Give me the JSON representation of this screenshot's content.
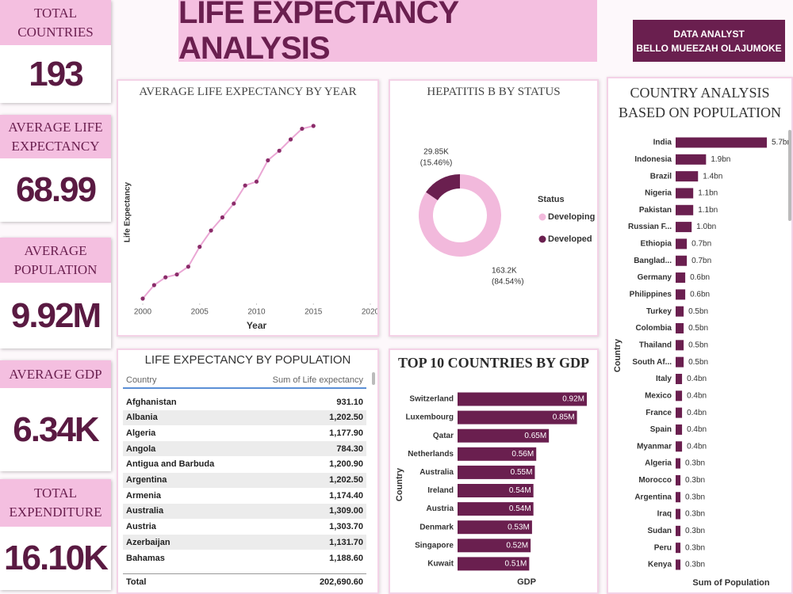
{
  "header": {
    "title": "LIFE EXPECTANCY ANALYSIS",
    "author_line1": "DATA ANALYST",
    "author_line2": "BELLO MUEEZAH OLAJUMOKE"
  },
  "kpis": [
    {
      "label": "TOTAL COUNTRIES",
      "value": "193"
    },
    {
      "label": "AVERAGE LIFE EXPECTANCY",
      "value": "68.99"
    },
    {
      "label": "AVERAGE POPULATION",
      "value": "9.92M"
    },
    {
      "label": "AVERAGE GDP",
      "value": "6.34K"
    },
    {
      "label": "TOTAL EXPENDITURE",
      "value": "16.10K"
    }
  ],
  "chart_data": [
    {
      "type": "line",
      "title": "AVERAGE LIFE EXPECTANCY BY YEAR",
      "xlabel": "Year",
      "ylabel": "Life Expectancy",
      "x": [
        2000,
        2001,
        2002,
        2003,
        2004,
        2005,
        2006,
        2007,
        2008,
        2009,
        2010,
        2011,
        2012,
        2013,
        2014,
        2015
      ],
      "values": [
        66.75,
        67.13,
        67.35,
        67.43,
        67.65,
        68.21,
        68.67,
        69.04,
        69.43,
        69.94,
        70.05,
        70.65,
        70.92,
        71.24,
        71.54,
        71.62
      ],
      "xlim": [
        2000,
        2020
      ],
      "xticks": [
        2000,
        2005,
        2010,
        2015,
        2020
      ],
      "color": "#eaa6d4",
      "marker_color": "#8b2c6a"
    },
    {
      "type": "donut",
      "title": "HEPATITIS B BY STATUS",
      "legend_title": "Status",
      "categories": [
        "Developing",
        "Developed"
      ],
      "values": [
        163200,
        29850
      ],
      "value_labels": [
        "163.2K",
        "29.85K"
      ],
      "percent_labels": [
        "(84.54%)",
        "(15.46%)"
      ],
      "colors": [
        "#f2b9dc",
        "#6a1f4f"
      ]
    },
    {
      "type": "hbar",
      "title": "TOP 10 COUNTRIES BY GDP",
      "xlabel": "GDP",
      "ylabel": "Country",
      "categories": [
        "Switzerland",
        "Luxembourg",
        "Qatar",
        "Netherlands",
        "Australia",
        "Ireland",
        "Austria",
        "Denmark",
        "Singapore",
        "Kuwait"
      ],
      "values": [
        920000,
        850000,
        650000,
        560000,
        550000,
        540000,
        540000,
        530000,
        520000,
        510000
      ],
      "value_labels": [
        "0.92M",
        "0.85M",
        "0.65M",
        "0.56M",
        "0.55M",
        "0.54M",
        "0.54M",
        "0.53M",
        "0.52M",
        "0.51M"
      ],
      "color": "#6a1f4f"
    },
    {
      "type": "hbar",
      "title": "COUNTRY ANALYSIS BASED ON POPULATION",
      "xlabel": "Sum of Population",
      "ylabel": "Country",
      "categories": [
        "India",
        "Indonesia",
        "Brazil",
        "Nigeria",
        "Pakistan",
        "Russian F...",
        "Ethiopia",
        "Banglad...",
        "Germany",
        "Philippines",
        "Turkey",
        "Colombia",
        "Thailand",
        "South Af...",
        "Italy",
        "Mexico",
        "France",
        "Spain",
        "Myanmar",
        "Algeria",
        "Morocco",
        "Argentina",
        "Iraq",
        "Sudan",
        "Peru",
        "Kenya"
      ],
      "values": [
        5700000000,
        1900000000,
        1400000000,
        1100000000,
        1100000000,
        1000000000,
        700000000,
        700000000,
        600000000,
        600000000,
        500000000,
        500000000,
        500000000,
        500000000,
        400000000,
        400000000,
        400000000,
        400000000,
        400000000,
        300000000,
        300000000,
        300000000,
        300000000,
        300000000,
        300000000,
        300000000
      ],
      "value_labels": [
        "5.7bn",
        "1.9bn",
        "1.4bn",
        "1.1bn",
        "1.1bn",
        "1.0bn",
        "0.7bn",
        "0.7bn",
        "0.6bn",
        "0.6bn",
        "0.5bn",
        "0.5bn",
        "0.5bn",
        "0.5bn",
        "0.4bn",
        "0.4bn",
        "0.4bn",
        "0.4bn",
        "0.4bn",
        "0.3bn",
        "0.3bn",
        "0.3bn",
        "0.3bn",
        "0.3bn",
        "0.3bn",
        "0.3bn"
      ],
      "color": "#6a1f4f"
    }
  ],
  "table": {
    "title": "LIFE EXPECTANCY BY POPULATION",
    "columns": [
      "Country",
      "Sum of Life expectancy"
    ],
    "rows": [
      [
        "Afghanistan",
        "931.10"
      ],
      [
        "Albania",
        "1,202.50"
      ],
      [
        "Algeria",
        "1,177.90"
      ],
      [
        "Angola",
        "784.30"
      ],
      [
        "Antigua and Barbuda",
        "1,200.90"
      ],
      [
        "Argentina",
        "1,202.50"
      ],
      [
        "Armenia",
        "1,174.40"
      ],
      [
        "Australia",
        "1,309.00"
      ],
      [
        "Austria",
        "1,303.70"
      ],
      [
        "Azerbaijan",
        "1,131.70"
      ],
      [
        "Bahamas",
        "1,188.60"
      ]
    ],
    "total": [
      "Total",
      "202,690.60"
    ]
  }
}
